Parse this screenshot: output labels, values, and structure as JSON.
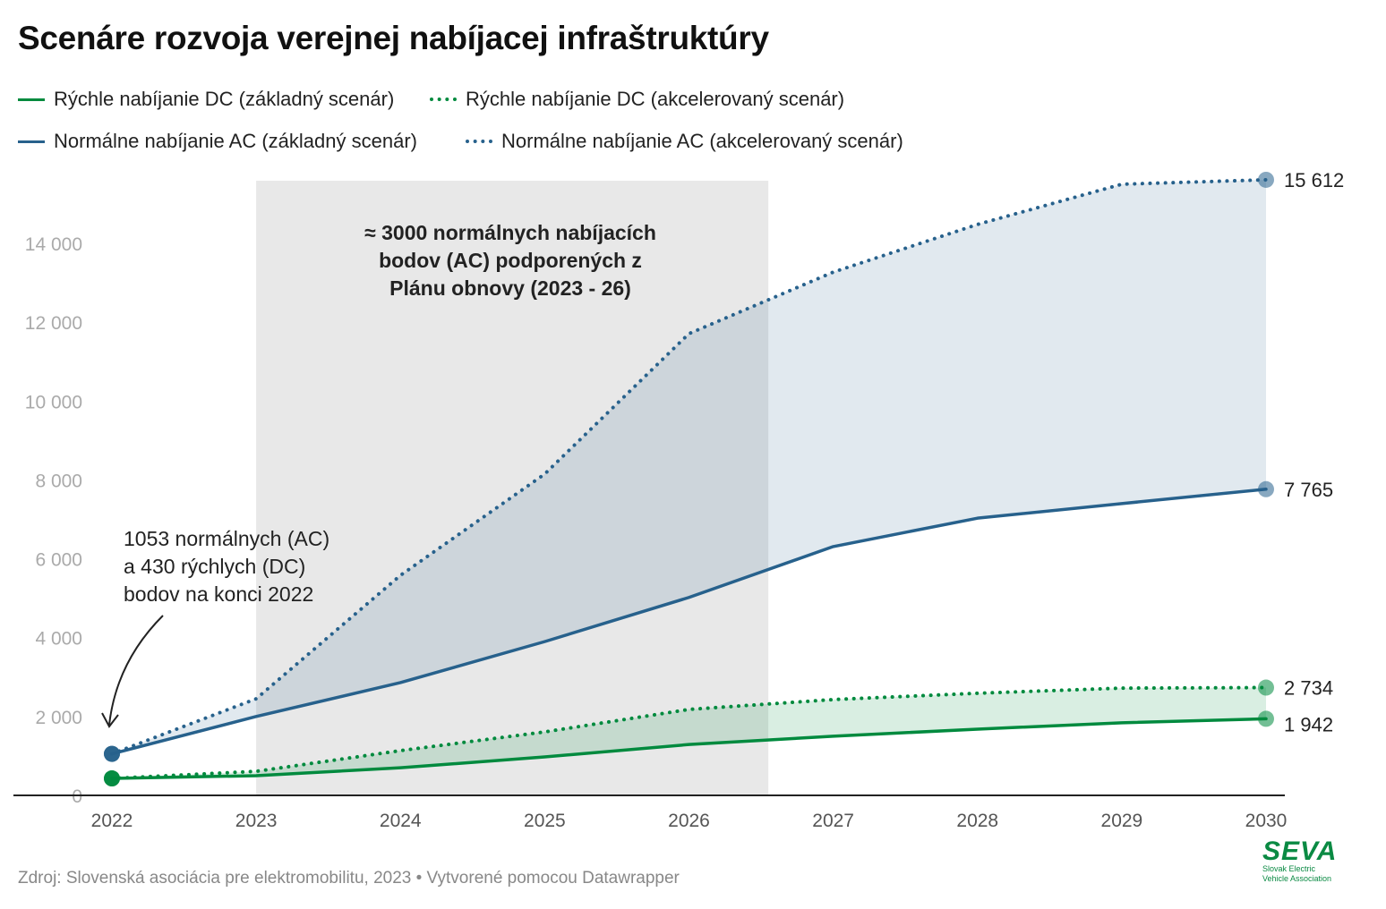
{
  "title": "Scenáre rozvoja verejnej nabíjacej infraštruktúry",
  "legend": [
    {
      "label": "Rýchle nabíjanie DC (základný scenár)",
      "color": "#008a3e",
      "style": "solid"
    },
    {
      "label": "Rýchle nabíjanie DC (akcelerovaný scenár)",
      "color": "#008a3e",
      "style": "dotted"
    },
    {
      "label": "Normálne nabíjanie AC  (základný scenár)",
      "color": "#27618c",
      "style": "solid"
    },
    {
      "label": "Normálne nabíjanie AC (akcelerovaný scenár)",
      "color": "#27618c",
      "style": "dotted"
    }
  ],
  "source": "Zdroj: Slovenská asociácia pre elektromobilitu, 2023 • Vytvorené pomocou Datawrapper",
  "logo": {
    "mark": "SEVA",
    "line1": "Slovak Electric",
    "line2": "Vehicle Association"
  },
  "chart_data": {
    "type": "line",
    "title": "Scenáre rozvoja verejnej nabíjacej infraštruktúry",
    "x": [
      2022,
      2023,
      2024,
      2025,
      2026,
      2027,
      2028,
      2029,
      2030
    ],
    "x_ticks": [
      "2022",
      "2023",
      "2024",
      "2025",
      "2026",
      "2027",
      "2028",
      "2029",
      "2030"
    ],
    "y_ticks": [
      {
        "v": 0,
        "label": "0"
      },
      {
        "v": 2000,
        "label": "2 000"
      },
      {
        "v": 4000,
        "label": "4 000"
      },
      {
        "v": 6000,
        "label": "6 000"
      },
      {
        "v": 8000,
        "label": "8 000"
      },
      {
        "v": 10000,
        "label": "10 000"
      },
      {
        "v": 12000,
        "label": "12 000"
      },
      {
        "v": 14000,
        "label": "14 000"
      }
    ],
    "ylim": [
      0,
      16000
    ],
    "series": [
      {
        "name": "Normálne nabíjanie AC (akcelerovaný scenár)",
        "key": "ac_acc",
        "color": "#27618c",
        "dotted": true,
        "values": [
          1053,
          2450,
          5580,
          8150,
          11710,
          13270,
          14480,
          15500,
          15612
        ],
        "end_label": "15 612"
      },
      {
        "name": "Normálne nabíjanie AC (základný scenár)",
        "key": "ac_base",
        "color": "#27618c",
        "dotted": false,
        "values": [
          1053,
          2000,
          2860,
          3900,
          5020,
          6310,
          7030,
          7400,
          7765
        ],
        "end_label": "7 765"
      },
      {
        "name": "Rýchle nabíjanie DC (akcelerovaný scenár)",
        "key": "dc_acc",
        "color": "#008a3e",
        "dotted": true,
        "values": [
          430,
          610,
          1135,
          1610,
          2180,
          2430,
          2590,
          2720,
          2734
        ],
        "end_label": "2 734"
      },
      {
        "name": "Rýchle nabíjanie DC (základný scenár)",
        "key": "dc_base",
        "color": "#008a3e",
        "dotted": false,
        "values": [
          430,
          500,
          700,
          975,
          1290,
          1500,
          1680,
          1840,
          1942
        ],
        "end_label": "1 942"
      }
    ],
    "highlight_range": [
      2023,
      2026.55
    ],
    "annotations": {
      "highlight": [
        "≈ 3000 normálnych nabíjacích",
        "bodov (AC) podporených z",
        "Plánu obnovy (2023 - 26)"
      ],
      "start": [
        "1053 normálnych (AC)",
        "a 430 rýchlych (DC)",
        "bodov na konci 2022"
      ]
    }
  }
}
